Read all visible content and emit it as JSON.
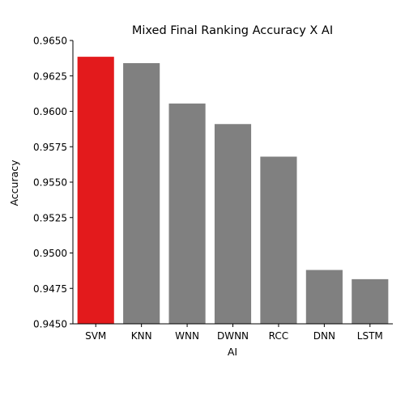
{
  "chart_data": {
    "type": "bar",
    "title": "Mixed Final Ranking Accuracy X AI",
    "xlabel": "AI",
    "ylabel": "Accuracy",
    "categories": [
      "SVM",
      "KNN",
      "WNN",
      "DWNN",
      "RCC",
      "DNN",
      "LSTM"
    ],
    "values": [
      0.96385,
      0.9634,
      0.96055,
      0.9591,
      0.9568,
      0.9488,
      0.94815
    ],
    "ylim": [
      0.945,
      0.965
    ],
    "yticks": [
      0.945,
      0.9475,
      0.95,
      0.9525,
      0.955,
      0.9575,
      0.96,
      0.9625,
      0.965
    ],
    "ytick_labels": [
      "0.9450",
      "0.9475",
      "0.9500",
      "0.9525",
      "0.9550",
      "0.9575",
      "0.9600",
      "0.9625",
      "0.9650"
    ],
    "grid": false,
    "highlight_color": "#e31a1c",
    "bar_color": "#808080",
    "highlight_index": 0
  }
}
